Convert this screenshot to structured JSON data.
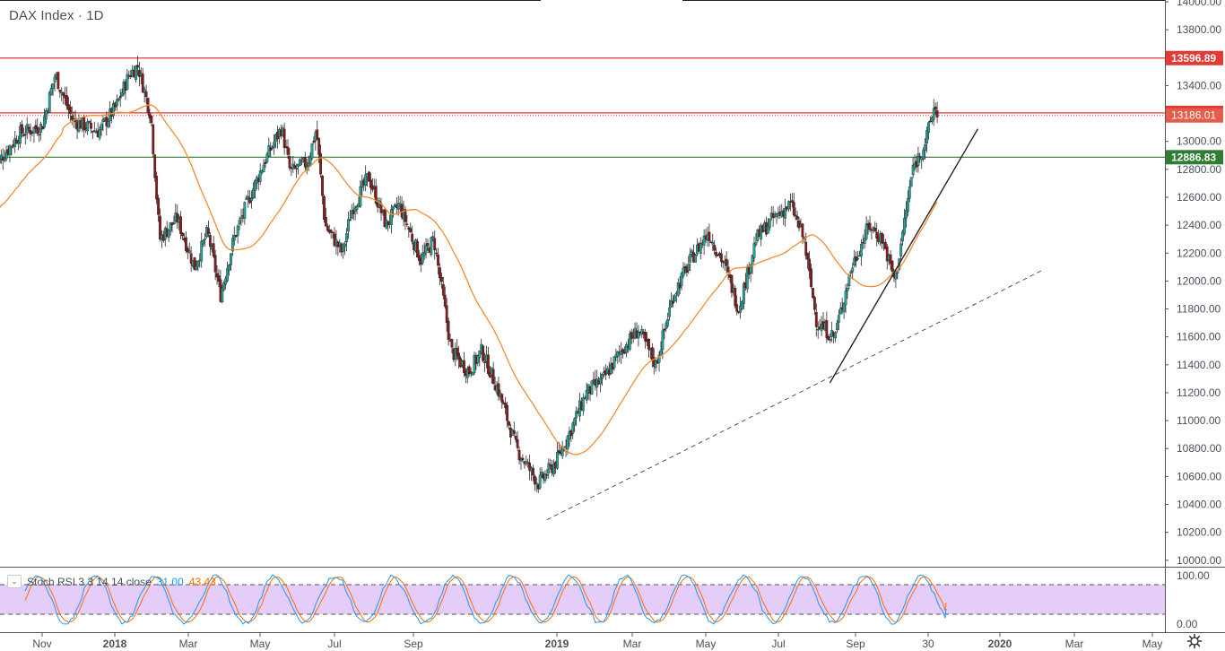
{
  "title": "DAX Index · 1D",
  "stoch_label": "Stoch RSI 3 3 14 14 close",
  "stoch_k": "31.00",
  "stoch_d": "43.43",
  "colors": {
    "up": "#26a69a",
    "down": "#8b1a1a",
    "resistance": "#e53935",
    "support": "#2e7d32",
    "ma": "#f48b32",
    "stoch_k": "#2196f3",
    "stoch_d": "#ff6d00",
    "stoch_band": "#e1c4f8"
  },
  "chart_data": {
    "type": "candlestick",
    "symbol": "DAX Index",
    "interval": "1D",
    "ylim": [
      10100,
      14000
    ],
    "y_ticks": [
      14000,
      13800,
      13600,
      13400,
      13200,
      13000,
      12800,
      12600,
      12400,
      12200,
      12000,
      11800,
      11600,
      11400,
      11200,
      11000,
      10800,
      10600,
      10400,
      10200,
      10000
    ],
    "x_ticks": [
      "Nov",
      "2018",
      "Mar",
      "May",
      "Jul",
      "Sep",
      "2019",
      "Mar",
      "May",
      "Jul",
      "Sep",
      "30",
      "2020",
      "Mar",
      "May"
    ],
    "price_path": [
      [
        2017.72,
        12820
      ],
      [
        2017.78,
        13060
      ],
      [
        2017.83,
        13110
      ],
      [
        2017.86,
        13480
      ],
      [
        2017.9,
        13150
      ],
      [
        2017.96,
        13070
      ],
      [
        2018.0,
        13250
      ],
      [
        2018.03,
        13480
      ],
      [
        2018.05,
        13540
      ],
      [
        2018.08,
        13180
      ],
      [
        2018.1,
        12300
      ],
      [
        2018.14,
        12450
      ],
      [
        2018.18,
        12100
      ],
      [
        2018.21,
        12350
      ],
      [
        2018.24,
        11900
      ],
      [
        2018.27,
        12300
      ],
      [
        2018.3,
        12550
      ],
      [
        2018.34,
        12850
      ],
      [
        2018.38,
        13100
      ],
      [
        2018.4,
        12780
      ],
      [
        2018.44,
        12850
      ],
      [
        2018.46,
        13090
      ],
      [
        2018.48,
        12400
      ],
      [
        2018.52,
        12200
      ],
      [
        2018.54,
        12500
      ],
      [
        2018.58,
        12750
      ],
      [
        2018.62,
        12400
      ],
      [
        2018.65,
        12550
      ],
      [
        2018.7,
        12150
      ],
      [
        2018.73,
        12300
      ],
      [
        2018.77,
        11500
      ],
      [
        2018.81,
        11350
      ],
      [
        2018.84,
        11500
      ],
      [
        2018.88,
        11200
      ],
      [
        2018.92,
        10800
      ],
      [
        2018.97,
        10550
      ],
      [
        2019.01,
        10700
      ],
      [
        2019.04,
        10900
      ],
      [
        2019.08,
        11200
      ],
      [
        2019.12,
        11300
      ],
      [
        2019.16,
        11500
      ],
      [
        2019.2,
        11650
      ],
      [
        2019.24,
        11400
      ],
      [
        2019.28,
        11900
      ],
      [
        2019.32,
        12150
      ],
      [
        2019.36,
        12350
      ],
      [
        2019.4,
        12100
      ],
      [
        2019.43,
        11800
      ],
      [
        2019.47,
        12300
      ],
      [
        2019.51,
        12450
      ],
      [
        2019.55,
        12550
      ],
      [
        2019.58,
        12300
      ],
      [
        2019.61,
        11700
      ],
      [
        2019.65,
        11600
      ],
      [
        2019.69,
        12100
      ],
      [
        2019.73,
        12400
      ],
      [
        2019.76,
        12300
      ],
      [
        2019.79,
        12000
      ],
      [
        2019.83,
        12800
      ],
      [
        2019.86,
        13000
      ],
      [
        2019.88,
        13250
      ],
      [
        2019.89,
        13186
      ]
    ],
    "horizontal_levels": [
      {
        "value": 13596.89,
        "label": "13596.89",
        "kind": "resistance"
      },
      {
        "value": 13204.31,
        "label": "13204.31",
        "kind": "resistance"
      },
      {
        "value": 12886.83,
        "label": "12886.83",
        "kind": "support"
      }
    ],
    "last_price": {
      "value": 13186.01,
      "label": "13186.01"
    },
    "trendlines": [
      {
        "style": "solid",
        "from": [
          2019.64,
          11270
        ],
        "to": [
          2019.98,
          13090
        ]
      },
      {
        "style": "dashed",
        "from": [
          2018.99,
          10290
        ],
        "to": [
          2020.13,
          12080
        ]
      }
    ],
    "stoch_rsi": {
      "label": "Stoch RSI 3 3 14 14 close",
      "k": 31.0,
      "d": 43.43,
      "upper_band": 80,
      "lower_band": 20,
      "axis_labels": [
        "100.00",
        "0.00"
      ]
    }
  }
}
